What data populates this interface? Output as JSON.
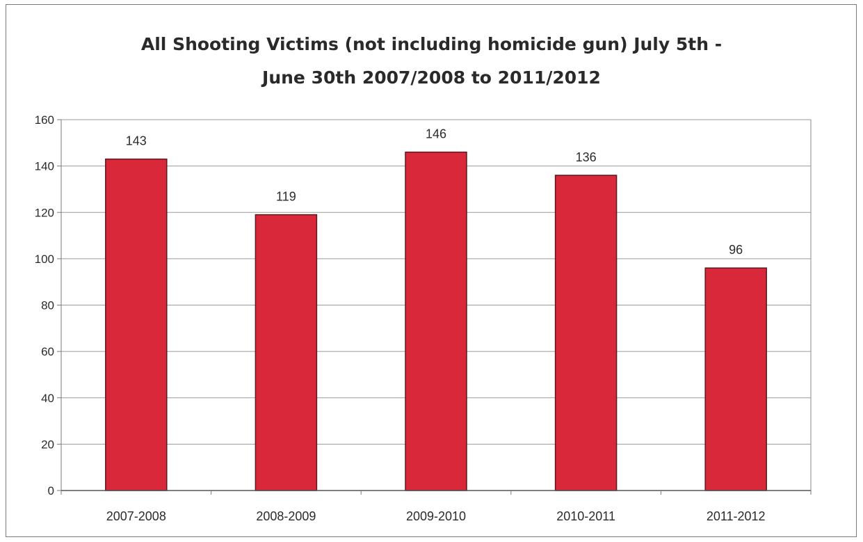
{
  "chart_data": {
    "type": "bar",
    "title_lines": [
      "All Shooting Victims (not including homicide gun) July 5th -",
      "June 30th 2007/2008 to 2011/2012"
    ],
    "categories": [
      "2007-2008",
      "2008-2009",
      "2009-2010",
      "2010-2011",
      "2011-2012"
    ],
    "values": [
      143,
      119,
      146,
      136,
      96
    ],
    "data_labels": [
      "143",
      "119",
      "146",
      "136",
      "96"
    ],
    "ylim": [
      0,
      160
    ],
    "yticks": [
      0,
      20,
      40,
      60,
      80,
      100,
      120,
      140,
      160
    ],
    "ytick_labels": [
      "0",
      "20",
      "40",
      "60",
      "80",
      "100",
      "120",
      "140",
      "160"
    ],
    "grid": true,
    "legend": "none",
    "bar_color": "#d9283a",
    "bar_edge_color": "#5a1a1f"
  }
}
